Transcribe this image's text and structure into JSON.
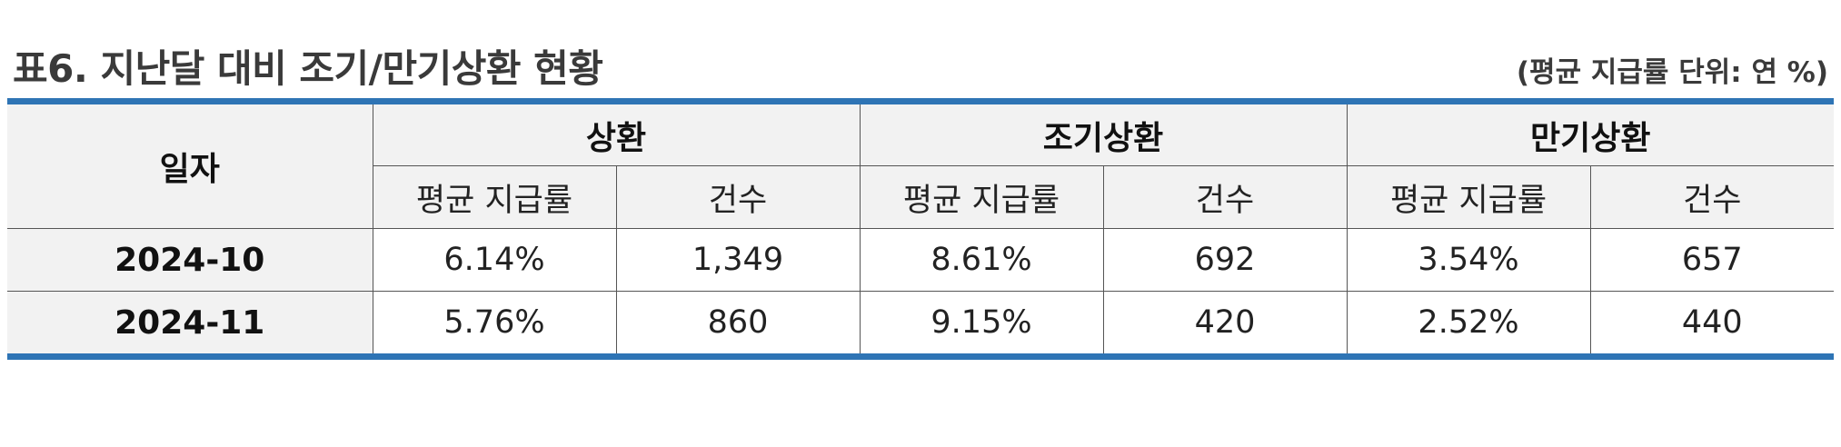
{
  "title": "표6. 지난달 대비 조기/만기상환 현황",
  "unit_note": "(평균 지급률 단위: 연 %)",
  "table": {
    "date_header": "일자",
    "groups": [
      "상환",
      "조기상환",
      "만기상환"
    ],
    "sub_headers": [
      "평균 지급률",
      "건수",
      "평균 지급률",
      "건수",
      "평균 지급률",
      "건수"
    ],
    "rows": [
      {
        "date": "2024-10",
        "values": [
          "6.14%",
          "1,349",
          "8.61%",
          "692",
          "3.54%",
          "657"
        ]
      },
      {
        "date": "2024-11",
        "values": [
          "5.76%",
          "860",
          "9.15%",
          "420",
          "2.52%",
          "440"
        ]
      }
    ]
  },
  "colors": {
    "accent_border": "#2e74b5",
    "header_bg": "#f2f2f2"
  }
}
